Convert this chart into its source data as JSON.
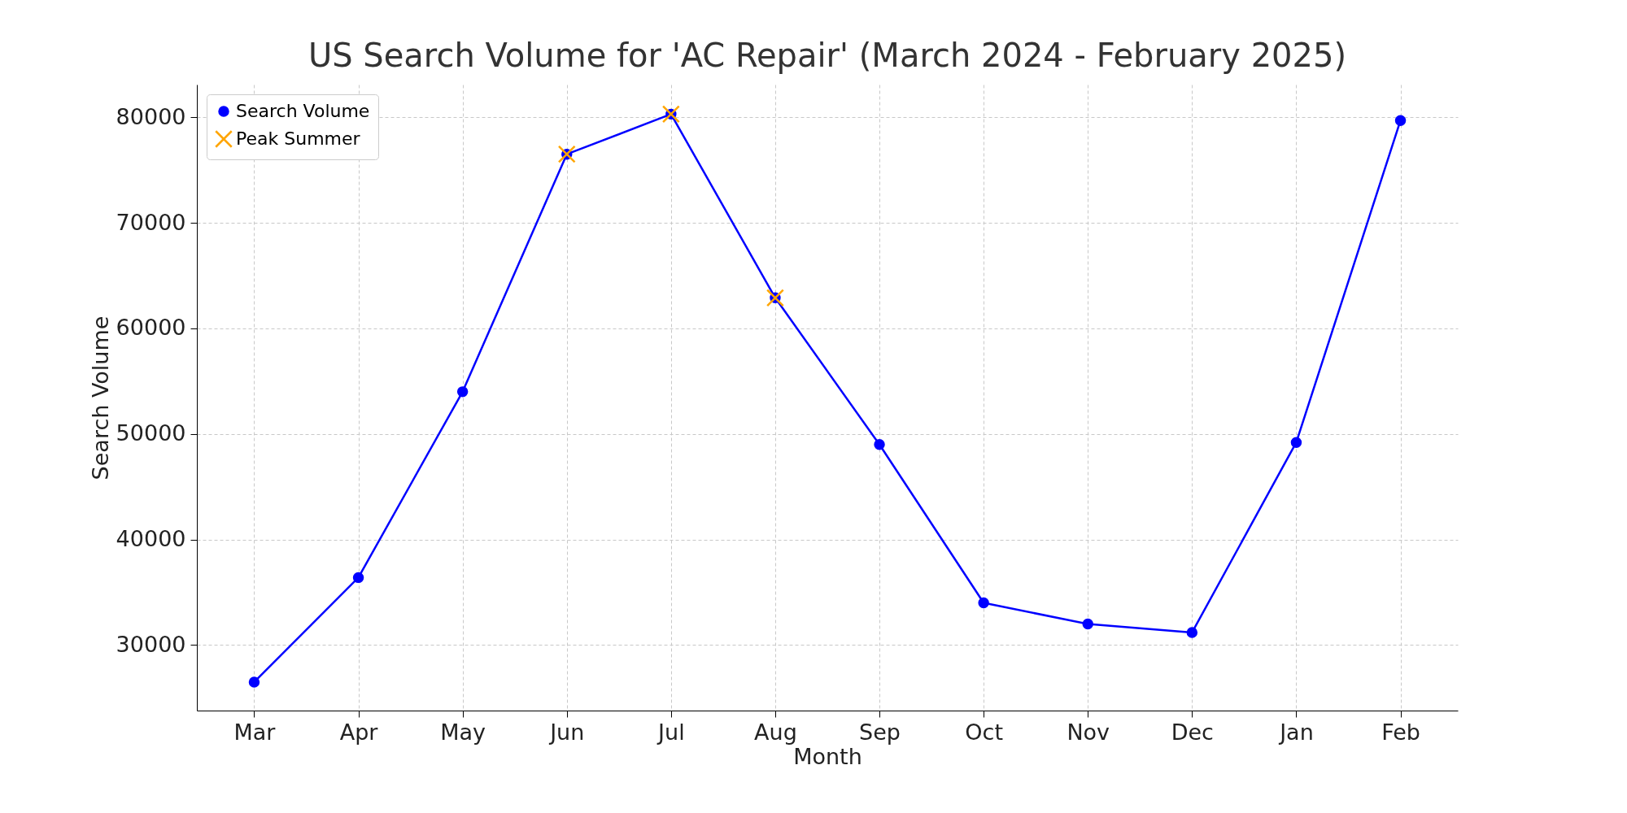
{
  "chart_data": {
    "type": "line",
    "title": "US Search Volume for 'AC Repair' (March 2024 - February 2025)",
    "xlabel": "Month",
    "ylabel": "Search Volume",
    "categories": [
      "Mar",
      "Apr",
      "May",
      "Jun",
      "Jul",
      "Aug",
      "Sep",
      "Oct",
      "Nov",
      "Dec",
      "Jan",
      "Feb"
    ],
    "series": [
      {
        "name": "Search Volume",
        "color": "#0000ff",
        "values": [
          26500,
          36400,
          54000,
          76500,
          80300,
          62900,
          49000,
          34000,
          32000,
          31200,
          49200,
          79700
        ],
        "marker": "circle",
        "line_style": "solid"
      },
      {
        "name": "Peak Summer",
        "type": "scatter",
        "color": "#ffa500",
        "x": [
          "Jun",
          "Jul",
          "Aug"
        ],
        "values": [
          76500,
          80300,
          62900
        ],
        "marker": "cross"
      }
    ],
    "ylim": [
      23800,
      83100
    ],
    "yticks": [
      30000,
      40000,
      50000,
      60000,
      70000,
      80000
    ],
    "grid": true,
    "legend": "top left"
  }
}
